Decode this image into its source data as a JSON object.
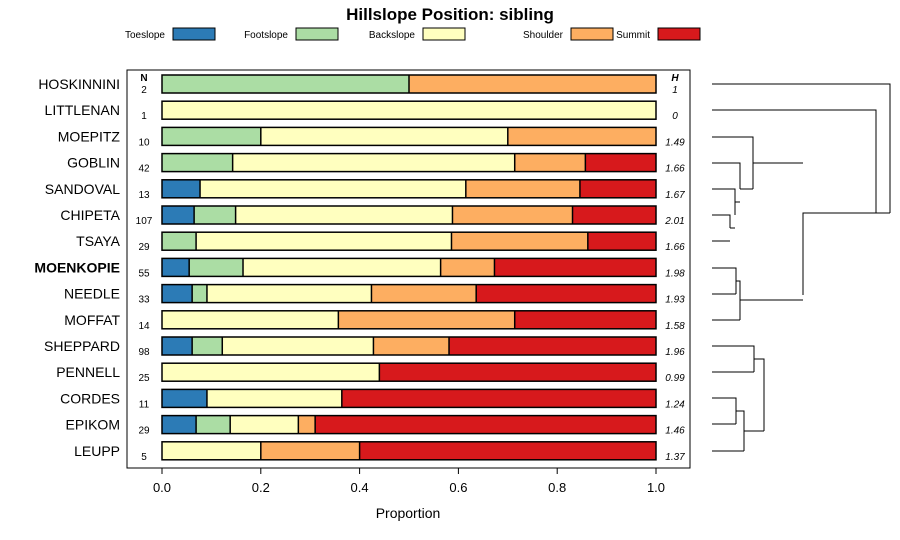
{
  "chart_data": {
    "type": "bar",
    "orientation": "horizontal-stacked",
    "title": "Hillslope Position: sibling",
    "xlabel": "Proportion",
    "ylabel": "",
    "xlim": [
      0,
      1
    ],
    "x_ticks": [
      "0.0",
      "0.2",
      "0.4",
      "0.6",
      "0.8",
      "1.0"
    ],
    "n_header": "N",
    "h_header": "H",
    "legend": [
      {
        "name": "Toeslope",
        "color": "#2c7bb6"
      },
      {
        "name": "Footslope",
        "color": "#abdda4"
      },
      {
        "name": "Backslope",
        "color": "#ffffbf"
      },
      {
        "name": "Shoulder",
        "color": "#fdae61"
      },
      {
        "name": "Summit",
        "color": "#d7191c"
      }
    ],
    "categories": [
      "HOSKINNINI",
      "LITTLENAN",
      "MOEPITZ",
      "GOBLIN",
      "SANDOVAL",
      "CHIPETA",
      "TSAYA",
      "MOENKOPIE",
      "NEEDLE",
      "MOFFAT",
      "SHEPPARD",
      "PENNELL",
      "CORDES",
      "EPIKOM",
      "LEUPP"
    ],
    "highlight": "MOENKOPIE",
    "n": [
      "2",
      "1",
      "10",
      "42",
      "13",
      "107",
      "29",
      "55",
      "33",
      "14",
      "98",
      "25",
      "11",
      "29",
      "5"
    ],
    "h": [
      "1",
      "0",
      "1.49",
      "1.66",
      "1.67",
      "2.01",
      "1.66",
      "1.98",
      "1.93",
      "1.58",
      "1.96",
      "0.99",
      "1.24",
      "1.46",
      "1.37"
    ],
    "series": [
      {
        "name": "Toeslope",
        "values": [
          0,
          0,
          0,
          0,
          0.077,
          0.065,
          0,
          0.055,
          0.061,
          0,
          0.061,
          0,
          0.091,
          0.069,
          0
        ]
      },
      {
        "name": "Footslope",
        "values": [
          0.5,
          0,
          0.2,
          0.143,
          0,
          0.084,
          0.069,
          0.109,
          0.03,
          0,
          0.061,
          0,
          0,
          0.069,
          0
        ]
      },
      {
        "name": "Backslope",
        "values": [
          0,
          1.0,
          0.5,
          0.571,
          0.538,
          0.439,
          0.517,
          0.4,
          0.333,
          0.357,
          0.306,
          0.44,
          0.273,
          0.138,
          0.2
        ]
      },
      {
        "name": "Shoulder",
        "values": [
          0.5,
          0,
          0.3,
          0.143,
          0.231,
          0.243,
          0.276,
          0.109,
          0.212,
          0.357,
          0.153,
          0,
          0,
          0.034,
          0.2
        ]
      },
      {
        "name": "Summit",
        "values": [
          0,
          0,
          0,
          0.143,
          0.154,
          0.168,
          0.138,
          0.327,
          0.364,
          0.286,
          0.419,
          0.56,
          0.636,
          0.69,
          0.6
        ]
      }
    ]
  }
}
